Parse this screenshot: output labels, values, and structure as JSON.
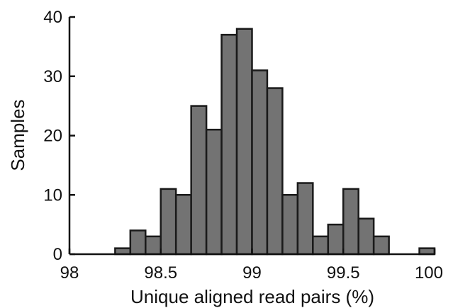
{
  "chart_data": {
    "type": "bar",
    "title": "",
    "xlabel": "Unique aligned read pairs (%)",
    "ylabel": "Samples",
    "xlim": [
      98,
      100
    ],
    "ylim": [
      0,
      40
    ],
    "x_ticks": [
      98,
      98.5,
      99,
      99.5,
      100
    ],
    "x_tick_labels": [
      "98",
      "98.5",
      "99",
      "99.5",
      "100"
    ],
    "y_ticks": [
      0,
      10,
      20,
      30,
      40
    ],
    "y_tick_labels": [
      "0",
      "10",
      "20",
      "30",
      "40"
    ],
    "bin_width": 0.0833,
    "bin_starts": [
      98.0,
      98.0833,
      98.1667,
      98.25,
      98.3333,
      98.4167,
      98.5,
      98.5833,
      98.6667,
      98.75,
      98.8333,
      98.9167,
      99.0,
      99.0833,
      99.1667,
      99.25,
      99.3333,
      99.4167,
      99.5,
      99.5833,
      99.6667,
      99.75,
      99.8333,
      99.9167
    ],
    "values": [
      0,
      0,
      0,
      1,
      4,
      3,
      11,
      10,
      25,
      21,
      37,
      38,
      31,
      28,
      10,
      12,
      3,
      5,
      11,
      6,
      3,
      0,
      0,
      1
    ],
    "bar_color": "#737373",
    "edge_color": "#1a1a1a",
    "grid": false,
    "legend": "none"
  }
}
